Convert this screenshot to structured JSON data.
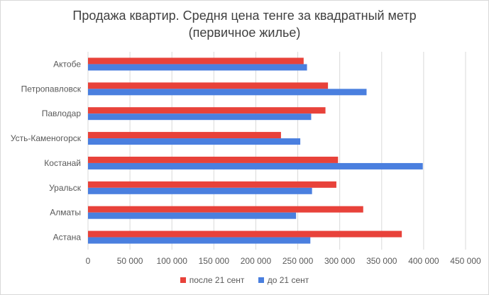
{
  "chart_data": {
    "type": "bar",
    "orientation": "horizontal",
    "title_line1": "Продажа квартир. Средня цена тенге за квадратный метр",
    "title_line2": "(первичное жилье)",
    "categories": [
      "Актобе",
      "Петропавловск",
      "Павлодар",
      "Усть-Каменогорск",
      "Костанай",
      "Уральск",
      "Алматы",
      "Астана"
    ],
    "series": [
      {
        "name": "после 21 сент",
        "color": "#e8423a",
        "values": [
          257000,
          286000,
          283000,
          230000,
          298000,
          296000,
          328000,
          374000
        ]
      },
      {
        "name": "до 21 сент",
        "color": "#4a7fdf",
        "values": [
          261000,
          332000,
          266000,
          253000,
          399000,
          267000,
          248000,
          265000
        ]
      }
    ],
    "xlim": [
      0,
      450000
    ],
    "x_ticks": [
      "0",
      "50 000",
      "100 000",
      "150 000",
      "200 000",
      "250 000",
      "300 000",
      "350 000",
      "400 000",
      "450 000"
    ],
    "x_tick_values": [
      0,
      50000,
      100000,
      150000,
      200000,
      250000,
      300000,
      350000,
      400000,
      450000
    ],
    "grid": true,
    "legend_position": "bottom"
  }
}
